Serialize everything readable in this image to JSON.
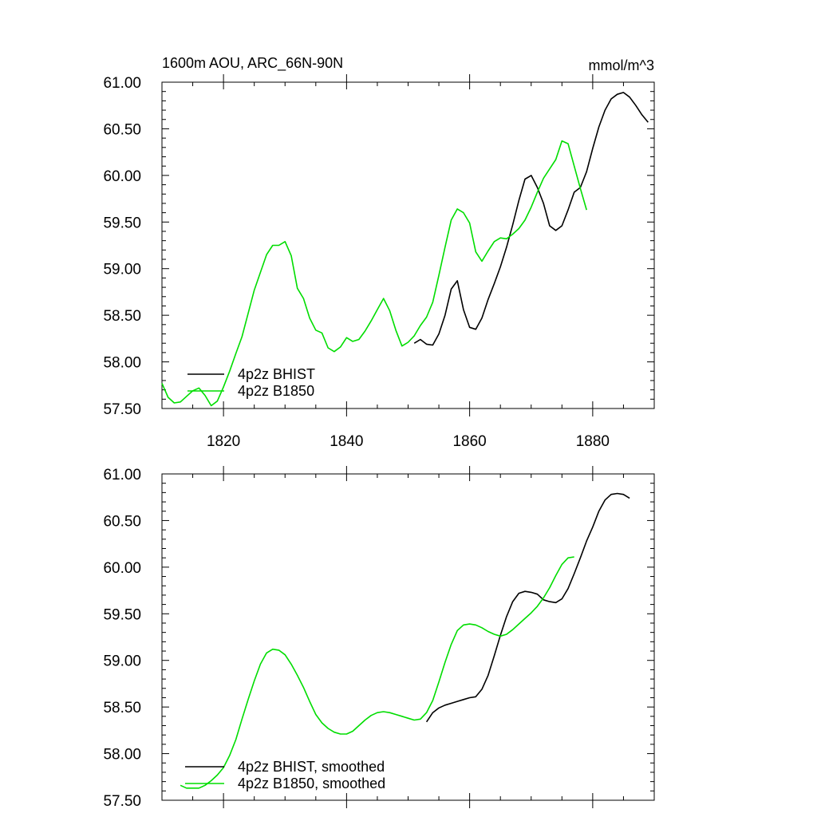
{
  "chart_data": [
    {
      "type": "line",
      "title": "1600m AOU, ARC_66N-90N",
      "units": "mmol/m^3",
      "xlim": [
        1810,
        1890
      ],
      "ylim": [
        57.5,
        61.0
      ],
      "x_ticks": [
        1820,
        1840,
        1860,
        1880
      ],
      "y_ticks": [
        "57.50",
        "58.00",
        "58.50",
        "59.00",
        "59.50",
        "60.00",
        "60.50",
        "61.00"
      ],
      "show_x_tick_labels": true,
      "legend_position": "bottom-left",
      "series": [
        {
          "name": "4p2z BHIST",
          "color": "#000000",
          "x": [
            1851,
            1852,
            1853,
            1854,
            1855,
            1856,
            1857,
            1858,
            1859,
            1860,
            1861,
            1862,
            1863,
            1864,
            1865,
            1866,
            1867,
            1868,
            1869,
            1870,
            1871,
            1872,
            1873,
            1874,
            1875,
            1876,
            1877,
            1878,
            1879,
            1880,
            1881,
            1882,
            1883,
            1884,
            1885,
            1886,
            1887,
            1888,
            1889
          ],
          "y": [
            58.2,
            58.24,
            58.19,
            58.18,
            58.3,
            58.5,
            58.78,
            58.87,
            58.56,
            58.37,
            58.35,
            58.47,
            58.67,
            58.84,
            59.02,
            59.23,
            59.47,
            59.73,
            59.96,
            60.0,
            59.87,
            59.7,
            59.46,
            59.41,
            59.46,
            59.63,
            59.82,
            59.87,
            60.04,
            60.29,
            60.52,
            60.7,
            60.82,
            60.87,
            60.89,
            60.84,
            60.75,
            60.65,
            60.57
          ]
        },
        {
          "name": "4p2z B1850",
          "color": "#00dd00",
          "x": [
            1810,
            1811,
            1812,
            1813,
            1814,
            1815,
            1816,
            1817,
            1818,
            1819,
            1820,
            1821,
            1822,
            1823,
            1824,
            1825,
            1826,
            1827,
            1828,
            1829,
            1830,
            1831,
            1832,
            1833,
            1834,
            1835,
            1836,
            1837,
            1838,
            1839,
            1840,
            1841,
            1842,
            1843,
            1844,
            1845,
            1846,
            1847,
            1848,
            1849,
            1850,
            1851,
            1852,
            1853,
            1854,
            1855,
            1856,
            1857,
            1858,
            1859,
            1860,
            1861,
            1862,
            1863,
            1864,
            1865,
            1866,
            1867,
            1868,
            1869,
            1870,
            1871,
            1872,
            1873,
            1874,
            1875,
            1876,
            1877,
            1878,
            1879
          ],
          "y": [
            57.77,
            57.62,
            57.56,
            57.57,
            57.63,
            57.69,
            57.72,
            57.64,
            57.53,
            57.58,
            57.73,
            57.9,
            58.09,
            58.27,
            58.52,
            58.77,
            58.96,
            59.15,
            59.25,
            59.25,
            59.29,
            59.14,
            58.79,
            58.68,
            58.47,
            58.34,
            58.31,
            58.15,
            58.11,
            58.16,
            58.26,
            58.22,
            58.24,
            58.33,
            58.44,
            58.56,
            58.68,
            58.55,
            58.34,
            58.17,
            58.21,
            58.28,
            58.39,
            58.48,
            58.64,
            58.93,
            59.23,
            59.52,
            59.64,
            59.6,
            59.49,
            59.18,
            59.08,
            59.19,
            59.29,
            59.33,
            59.32,
            59.37,
            59.43,
            59.52,
            59.66,
            59.82,
            59.97,
            60.07,
            60.17,
            60.37,
            60.34,
            60.1,
            59.86,
            59.63
          ]
        }
      ]
    },
    {
      "type": "line",
      "title": "",
      "units": "",
      "xlim": [
        1810,
        1890
      ],
      "ylim": [
        57.5,
        61.0
      ],
      "x_ticks": [
        1820,
        1840,
        1860,
        1880
      ],
      "y_ticks": [
        "57.50",
        "58.00",
        "58.50",
        "59.00",
        "59.50",
        "60.00",
        "60.50",
        "61.00"
      ],
      "show_x_tick_labels": false,
      "legend_position": "bottom-left",
      "series": [
        {
          "name": "4p2z BHIST, smoothed",
          "color": "#000000",
          "x": [
            1853,
            1854,
            1855,
            1856,
            1857,
            1858,
            1859,
            1860,
            1861,
            1862,
            1863,
            1864,
            1865,
            1866,
            1867,
            1868,
            1869,
            1870,
            1871,
            1872,
            1873,
            1874,
            1875,
            1876,
            1877,
            1878,
            1879,
            1880,
            1881,
            1882,
            1883,
            1884,
            1885,
            1886
          ],
          "y": [
            58.34,
            58.44,
            58.49,
            58.52,
            58.54,
            58.56,
            58.58,
            58.6,
            58.61,
            58.69,
            58.84,
            59.05,
            59.27,
            59.47,
            59.63,
            59.72,
            59.74,
            59.73,
            59.71,
            59.65,
            59.63,
            59.62,
            59.66,
            59.77,
            59.93,
            60.1,
            60.28,
            60.43,
            60.6,
            60.72,
            60.78,
            60.79,
            60.78,
            60.74
          ]
        },
        {
          "name": "4p2z B1850, smoothed",
          "color": "#00dd00",
          "x": [
            1813,
            1814,
            1815,
            1816,
            1817,
            1818,
            1819,
            1820,
            1821,
            1822,
            1823,
            1824,
            1825,
            1826,
            1827,
            1828,
            1829,
            1830,
            1831,
            1832,
            1833,
            1834,
            1835,
            1836,
            1837,
            1838,
            1839,
            1840,
            1841,
            1842,
            1843,
            1844,
            1845,
            1846,
            1847,
            1848,
            1849,
            1850,
            1851,
            1852,
            1853,
            1854,
            1855,
            1856,
            1857,
            1858,
            1859,
            1860,
            1861,
            1862,
            1863,
            1864,
            1865,
            1866,
            1867,
            1868,
            1869,
            1870,
            1871,
            1872,
            1873,
            1874,
            1875,
            1876,
            1877
          ],
          "y": [
            57.66,
            57.63,
            57.63,
            57.63,
            57.66,
            57.71,
            57.77,
            57.85,
            57.98,
            58.15,
            58.37,
            58.58,
            58.78,
            58.96,
            59.08,
            59.12,
            59.11,
            59.06,
            58.96,
            58.84,
            58.71,
            58.56,
            58.42,
            58.33,
            58.27,
            58.23,
            58.21,
            58.21,
            58.24,
            58.3,
            58.36,
            58.41,
            58.44,
            58.45,
            58.44,
            58.42,
            58.4,
            58.38,
            58.36,
            58.37,
            58.44,
            58.57,
            58.77,
            58.98,
            59.17,
            59.32,
            59.38,
            59.39,
            59.38,
            59.35,
            59.31,
            59.28,
            59.26,
            59.28,
            59.33,
            59.39,
            59.45,
            59.51,
            59.58,
            59.67,
            59.78,
            59.91,
            60.03,
            60.1,
            60.11
          ]
        }
      ]
    }
  ]
}
